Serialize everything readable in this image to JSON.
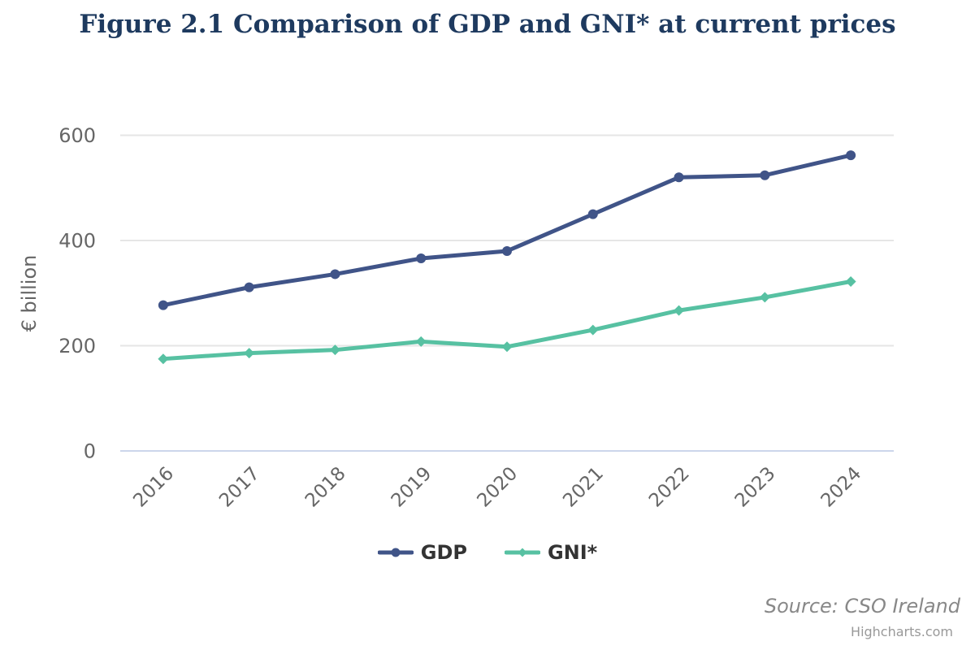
{
  "title": "Figure 2.1 Comparison of GDP and GNI* at current prices",
  "chart_data": {
    "type": "line",
    "categories": [
      "2016",
      "2017",
      "2018",
      "2019",
      "2020",
      "2021",
      "2022",
      "2023",
      "2024"
    ],
    "series": [
      {
        "name": "GDP",
        "color": "#405488",
        "marker": "circle",
        "values": [
          277,
          311,
          336,
          366,
          380,
          450,
          520,
          524,
          562
        ]
      },
      {
        "name": "GNI*",
        "color": "#57c1a2",
        "marker": "diamond",
        "values": [
          175,
          186,
          192,
          208,
          198,
          230,
          267,
          292,
          322
        ]
      }
    ],
    "xlabel": "",
    "ylabel": "€ billion",
    "ylim": [
      0,
      600
    ],
    "yticks": [
      0,
      200,
      400,
      600
    ],
    "grid": true,
    "legend_position": "bottom",
    "x_label_rotation": -45
  },
  "colors": {
    "title": "#1e3a5f",
    "grid_line": "#e6e6e6",
    "axis_line": "#ccd6eb",
    "tick_label": "#666666",
    "legend_text": "#333333",
    "source_text": "#888888",
    "credits_text": "#999999"
  },
  "footer": {
    "source": "Source: CSO Ireland",
    "credits": "Highcharts.com"
  }
}
